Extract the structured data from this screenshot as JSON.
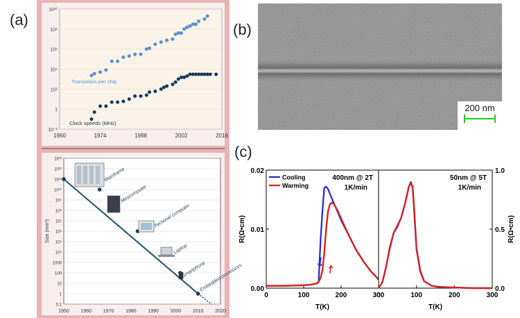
{
  "panel_labels": {
    "a": "(a)",
    "b": "(b)",
    "c": "(c)"
  },
  "colors": {
    "frame": "#e8b4b4",
    "inner": "#f8eeee",
    "light_blue": "#5b8fd0",
    "dark_blue": "#143b5c",
    "cooling": "#2424d8",
    "warming": "#d52020",
    "scale_bar": "#22cc22"
  },
  "chart_data": [
    {
      "type": "scatter",
      "y_scale": "log",
      "xlim": [
        1960,
        2016
      ],
      "ylim": [
        0.01,
        10000000000
      ],
      "x_ticks": [
        "1960",
        "1974",
        "1988",
        "2002",
        "2016"
      ],
      "y_ticks": [
        "10¹⁰",
        "10⁸",
        "10⁶",
        "10⁴",
        "10²",
        "1",
        "10⁻²"
      ],
      "series": [
        {
          "name": "Transistors per chip",
          "color": "#5b8fd0",
          "x": [
            1971,
            1972,
            1974,
            1976,
            1978,
            1980,
            1982,
            1984,
            1986,
            1988,
            1990,
            1991,
            1993,
            1995,
            1997,
            1999,
            2000,
            2001,
            2002,
            2003,
            2004,
            2005,
            2006,
            2007,
            2008,
            2010,
            2011
          ],
          "y": [
            2300,
            3500,
            5000,
            8000,
            60000,
            60000,
            150000,
            200000,
            300000,
            300000,
            1000000,
            1200000,
            3000000,
            5000000,
            7500000,
            10000000,
            30000000,
            40000000,
            40000000,
            100000000,
            150000000,
            200000000,
            300000000,
            300000000,
            600000000,
            1000000000,
            2000000000
          ]
        },
        {
          "name": "Clock speeds (MHz)",
          "color": "#143b5c",
          "x": [
            1971,
            1972,
            1974,
            1976,
            1978,
            1980,
            1982,
            1984,
            1986,
            1988,
            1990,
            1991,
            1993,
            1995,
            1996,
            1997,
            1999,
            2000,
            2001,
            2002,
            2003,
            2004,
            2005,
            2006,
            2007,
            2008,
            2009,
            2010,
            2011,
            2012,
            2014
          ],
          "y": [
            0.1,
            0.5,
            2,
            2,
            5,
            5,
            6,
            10,
            20,
            20,
            25,
            50,
            60,
            100,
            150,
            200,
            300,
            500,
            1000,
            1500,
            1500,
            2000,
            3000,
            3000,
            3000,
            3000,
            3000,
            3000,
            3000,
            3000,
            3000
          ]
        }
      ]
    },
    {
      "type": "line",
      "y_scale": "log",
      "xlabel": "",
      "ylabel": "Size (mm³)",
      "xlim": [
        1950,
        2020
      ],
      "ylim": [
        0.1,
        10000000000000
      ],
      "x_ticks": [
        "1950",
        "1960",
        "1970",
        "1980",
        "1990",
        "2000",
        "2010",
        "2020"
      ],
      "y_ticks": [
        "10¹³",
        "10¹²",
        "10¹¹",
        "10¹⁰",
        "10⁹",
        "10⁸",
        "10⁷",
        "10⁶",
        "10⁵",
        "10⁴",
        "1000",
        "100",
        "10",
        "1",
        "0.1"
      ],
      "points": [
        {
          "x": 1950,
          "y": 100000000000,
          "label": ""
        },
        {
          "x": 1966,
          "y": 10000000000,
          "label": "Mainframe"
        },
        {
          "x": 1972,
          "y": 100000000,
          "label": "Minicomputer"
        },
        {
          "x": 1983,
          "y": 1000000,
          "label": "Personal computer"
        },
        {
          "x": 1995,
          "y": 10000,
          "label": "Laptop"
        },
        {
          "x": 2002,
          "y": 100,
          "label": "Smartphone"
        },
        {
          "x": 2010,
          "y": 1,
          "label": "Embedded processors"
        }
      ]
    },
    {
      "type": "line",
      "title": "400nm @ 2T",
      "subtitle": "1K/min",
      "xlabel": "T(K)",
      "ylabel": "R(Ω•cm)",
      "xlim": [
        0,
        300
      ],
      "ylim": [
        0,
        0.02
      ],
      "x_ticks": [
        "0",
        "100",
        "200",
        "300"
      ],
      "y_ticks": [
        "0.00",
        "0.01",
        "0.02"
      ],
      "legend": "top-left",
      "series": [
        {
          "name": "Cooling",
          "color": "#2424d8",
          "x": [
            0,
            50,
            100,
            120,
            135,
            140,
            142,
            145,
            150,
            155,
            160,
            165,
            170,
            180,
            190,
            200,
            220,
            240,
            260,
            280,
            300
          ],
          "y": [
            0.0004,
            0.0004,
            0.0005,
            0.0006,
            0.0008,
            0.001,
            0.004,
            0.008,
            0.013,
            0.017,
            0.0172,
            0.0168,
            0.016,
            0.0145,
            0.013,
            0.0115,
            0.009,
            0.0065,
            0.0045,
            0.0028,
            0.0015
          ]
        },
        {
          "name": "Warming",
          "color": "#d52020",
          "x": [
            0,
            50,
            100,
            120,
            135,
            140,
            145,
            150,
            155,
            160,
            165,
            170,
            175,
            180,
            190,
            200,
            220,
            240,
            260,
            280,
            300
          ],
          "y": [
            0.0004,
            0.0004,
            0.0005,
            0.0006,
            0.0008,
            0.0011,
            0.0017,
            0.003,
            0.006,
            0.01,
            0.013,
            0.0142,
            0.0145,
            0.0143,
            0.0132,
            0.0118,
            0.009,
            0.0065,
            0.0045,
            0.0028,
            0.0015
          ]
        }
      ]
    },
    {
      "type": "line",
      "title": "50nm @ 5T",
      "subtitle": "1K/min",
      "xlabel": "T(K)",
      "ylabel": "R(Ω•cm)",
      "xlim": [
        0,
        300
      ],
      "ylim": [
        0,
        1.0
      ],
      "x_ticks": [
        "0",
        "100",
        "200",
        "300"
      ],
      "y_ticks": [
        "0.0",
        "0.5",
        "1.0"
      ],
      "series": [
        {
          "name": "Cooling",
          "color": "#2424d8",
          "x": [
            0,
            10,
            20,
            30,
            40,
            50,
            60,
            70,
            80,
            85,
            90,
            95,
            100,
            110,
            120,
            140,
            160,
            200,
            250,
            300
          ],
          "y": [
            0.0,
            0.05,
            0.18,
            0.34,
            0.47,
            0.52,
            0.6,
            0.72,
            0.86,
            0.9,
            0.85,
            0.6,
            0.33,
            0.14,
            0.06,
            0.02,
            0.01,
            0.005,
            0.0,
            0.0
          ]
        },
        {
          "name": "Warming",
          "color": "#d52020",
          "x": [
            0,
            10,
            20,
            30,
            40,
            50,
            60,
            70,
            80,
            85,
            90,
            95,
            100,
            110,
            120,
            140,
            160,
            200,
            250,
            300
          ],
          "y": [
            0.0,
            0.05,
            0.18,
            0.35,
            0.47,
            0.53,
            0.6,
            0.72,
            0.86,
            0.89,
            0.86,
            0.62,
            0.34,
            0.15,
            0.06,
            0.02,
            0.01,
            0.005,
            0.0,
            0.0
          ]
        }
      ]
    }
  ],
  "scale_bar": {
    "label": "200 nm"
  }
}
